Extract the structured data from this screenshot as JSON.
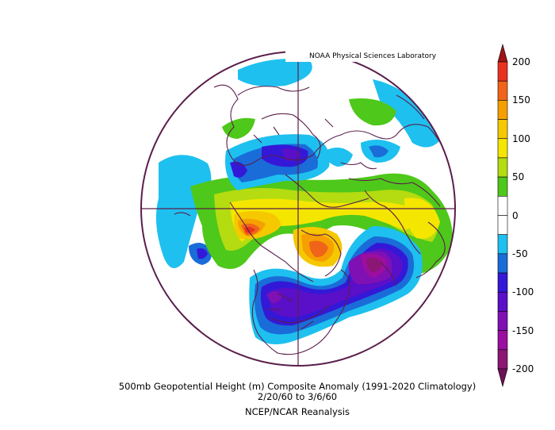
{
  "credit": "NOAA Physical Sciences Laboratory",
  "caption": {
    "title": "500mb Geopotential Height (m) Composite Anomaly (1991-2020 Climatology)",
    "dates": "2/20/60   to 3/6/60",
    "source": "NCEP/NCAR Reanalysis"
  },
  "colorbar": {
    "labels": [
      "200",
      "150",
      "100",
      "50",
      "0",
      "-50",
      "-100",
      "-150",
      "-200"
    ],
    "bins": [
      {
        "range": "175 to 200",
        "color": "#e8321e"
      },
      {
        "range": "150 to 175",
        "color": "#f0641a"
      },
      {
        "range": "125 to 150",
        "color": "#f5a000"
      },
      {
        "range": "100 to 125",
        "color": "#f6c800"
      },
      {
        "range": "75 to 100",
        "color": "#f5e600"
      },
      {
        "range": "50 to 75",
        "color": "#b4dc10"
      },
      {
        "range": "25 to 50",
        "color": "#4ec81a"
      },
      {
        "range": "0 to 25",
        "color": "#ffffff"
      },
      {
        "range": "-25 to 0",
        "color": "#ffffff"
      },
      {
        "range": "-50 to -25",
        "color": "#1ec0ef"
      },
      {
        "range": "-75 to -50",
        "color": "#1a6cd8"
      },
      {
        "range": "-100 to -75",
        "color": "#3418d8"
      },
      {
        "range": "-125 to -100",
        "color": "#5a0fc8"
      },
      {
        "range": "-150 to -125",
        "color": "#7e10b4"
      },
      {
        "range": "-175 to -150",
        "color": "#9c0ea0"
      },
      {
        "range": "-200 to -175",
        "color": "#8c1673"
      }
    ],
    "top_arrow_color": "#a01414",
    "bottom_arrow_color": "#6e1258"
  },
  "colors": {
    "coastline": "#5a1e4b",
    "frame": "#5a1e4b"
  }
}
